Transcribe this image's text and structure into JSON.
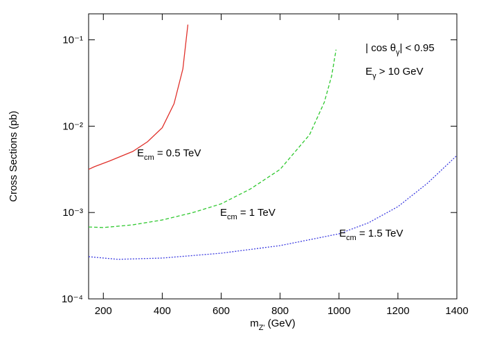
{
  "chart_data": {
    "type": "line",
    "x_label": [
      "m",
      "Z'",
      "   (GeV)"
    ],
    "y_label": [
      "Cross Sections   (pb)"
    ],
    "log_y": true,
    "xlim": [
      150,
      1400
    ],
    "xticks": [
      200,
      400,
      600,
      800,
      1000,
      1200,
      1400
    ],
    "ylim": [
      0.0001,
      0.2
    ],
    "yticks": [
      {
        "value": 0.0001,
        "label": "10⁻⁴"
      },
      {
        "value": 0.001,
        "label": "10⁻³"
      },
      {
        "value": 0.01,
        "label": "10⁻²"
      },
      {
        "value": 0.1,
        "label": "10⁻¹"
      }
    ],
    "annotations": [
      {
        "parts": [
          "| cos θ",
          "γ",
          "| < 0.95"
        ]
      },
      {
        "parts": [
          "E",
          "γ",
          " > 10 GeV"
        ]
      },
      {
        "parts": [
          "E",
          "cm",
          " = 0.5 TeV"
        ]
      },
      {
        "parts": [
          "E",
          "cm",
          " = 1 TeV"
        ]
      },
      {
        "parts": [
          "E",
          "cm",
          " = 1.5 TeV"
        ]
      }
    ],
    "series": [
      {
        "color": "#e0302a",
        "dash": "solid",
        "x": [
          150,
          170,
          220,
          300,
          350,
          400,
          440,
          470,
          487
        ],
        "values": [
          0.00316,
          0.0034,
          0.00394,
          0.0051,
          0.0066,
          0.0096,
          0.0182,
          0.046,
          0.15
        ]
      },
      {
        "color": "#2ec82e",
        "dash": "dashed",
        "x": [
          150,
          200,
          300,
          400,
          500,
          600,
          700,
          800,
          900,
          950,
          975,
          990
        ],
        "values": [
          0.00068,
          0.00067,
          0.00072,
          0.00082,
          0.00099,
          0.00126,
          0.00188,
          0.00316,
          0.00796,
          0.0189,
          0.0382,
          0.077
        ]
      },
      {
        "color": "#3a3ae0",
        "dash": "dotted",
        "x": [
          150,
          250,
          400,
          600,
          800,
          1000,
          1100,
          1200,
          1300,
          1400
        ],
        "values": [
          0.000308,
          0.000287,
          0.000297,
          0.000338,
          0.000414,
          0.000567,
          0.00076,
          0.00117,
          0.00218,
          0.00457
        ]
      }
    ]
  }
}
